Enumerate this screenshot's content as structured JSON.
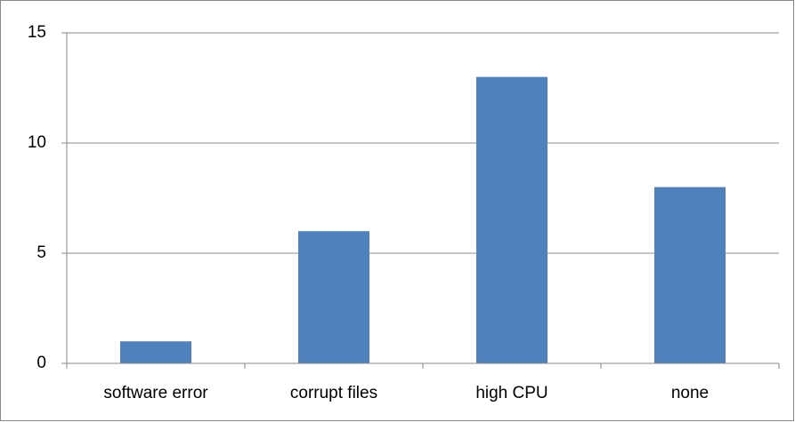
{
  "chart_data": {
    "type": "bar",
    "categories": [
      "software error",
      "corrupt files",
      "high CPU",
      "none"
    ],
    "values": [
      1,
      6,
      13,
      8
    ],
    "color": "#4f81bd",
    "ylim": [
      0,
      15
    ],
    "yticks": [
      0,
      5,
      10,
      15
    ],
    "grid": true
  }
}
